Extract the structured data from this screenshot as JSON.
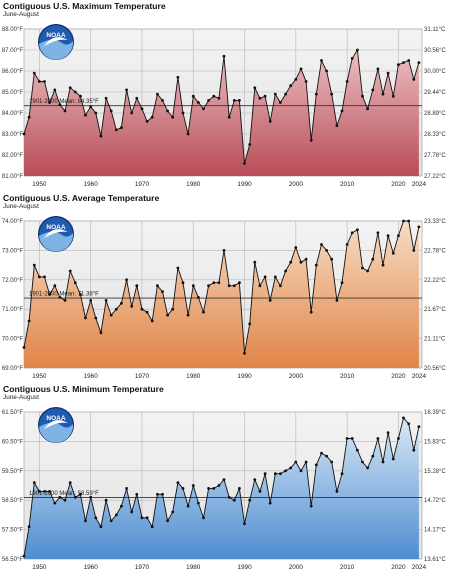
{
  "chart_data": [
    {
      "type": "line",
      "title": "Contiguous U.S. Maximum Temperature",
      "subtitle": "June-August",
      "logo": "NOAA",
      "mean_label": "1901-2000 Mean: 84.35°F",
      "mean_value": 84.35,
      "ylim": [
        81.0,
        88.0
      ],
      "yticks_left": [
        "81.00°F",
        "82.00°F",
        "83.00°F",
        "84.00°F",
        "85.00°F",
        "86.00°F",
        "87.00°F",
        "88.00°F"
      ],
      "yticks_right": [
        "27.22°C",
        "27.78°C",
        "28.33°C",
        "28.89°C",
        "29.44°C",
        "30.00°C",
        "30.56°C",
        "31.11°C"
      ],
      "xticks": [
        "1950",
        "1960",
        "1970",
        "1980",
        "1990",
        "2000",
        "2010",
        "2020",
        "2024"
      ],
      "colors": {
        "fill_top": "#ecc0c3",
        "fill_bottom": "#b84c56",
        "line": "#111111",
        "marker": "#111111",
        "mean_line": "#333333"
      },
      "series": [
        {
          "values": [
            83.0,
            83.8,
            85.9,
            85.5,
            85.5,
            84.5,
            85.1,
            84.4,
            84.1,
            85.2,
            85.0,
            84.8,
            83.9,
            84.3,
            84.0,
            82.9,
            84.7,
            84.1,
            83.2,
            83.3,
            85.1,
            84.0,
            84.7,
            84.2,
            83.6,
            83.8,
            84.9,
            84.6,
            84.1,
            83.8,
            85.7,
            84.0,
            83.0,
            84.8,
            84.5,
            84.2,
            84.6,
            84.8,
            84.7,
            86.7,
            83.8,
            84.6,
            84.6,
            81.6,
            82.5,
            85.2,
            84.7,
            84.8,
            83.6,
            84.9,
            84.5,
            84.9,
            85.3,
            85.6,
            86.1,
            85.5,
            82.7,
            84.9,
            86.5,
            86.0,
            84.9,
            83.4,
            84.1,
            85.5,
            86.6,
            87.0,
            84.8,
            84.2,
            85.1,
            86.1,
            84.9,
            85.9,
            84.8,
            86.3,
            86.4,
            86.5,
            85.6,
            86.4
          ]
        }
      ],
      "x_start": 1947
    },
    {
      "type": "line",
      "title": "Contiguous U.S. Average Temperature",
      "subtitle": "June-August",
      "logo": "NOAA",
      "mean_label": "1901-2000 Mean: 71.38°F",
      "mean_value": 71.38,
      "ylim": [
        69.0,
        74.0
      ],
      "yticks_left": [
        "69.00°F",
        "70.00°F",
        "71.00°F",
        "72.00°F",
        "73.00°F",
        "74.00°F"
      ],
      "yticks_right": [
        "20.56°C",
        "21.11°C",
        "21.67°C",
        "22.22°C",
        "22.78°C",
        "23.33°C"
      ],
      "xticks": [
        "1950",
        "1960",
        "1970",
        "1980",
        "1990",
        "2000",
        "2010",
        "2020",
        "2024"
      ],
      "colors": {
        "fill_top": "#f7dcc4",
        "fill_bottom": "#e08548",
        "line": "#111111",
        "marker": "#111111",
        "mean_line": "#333333"
      },
      "series": [
        {
          "values": [
            69.7,
            70.6,
            72.5,
            72.1,
            72.1,
            71.5,
            71.8,
            71.4,
            71.3,
            72.3,
            71.9,
            71.5,
            70.7,
            71.3,
            70.7,
            70.2,
            71.3,
            70.8,
            71.0,
            71.2,
            72.0,
            71.1,
            71.8,
            71.0,
            70.9,
            70.6,
            71.8,
            71.6,
            70.8,
            71.0,
            72.4,
            71.9,
            70.8,
            71.8,
            71.4,
            70.9,
            71.8,
            71.9,
            71.9,
            73.0,
            71.8,
            71.8,
            71.9,
            69.5,
            70.5,
            72.6,
            71.8,
            72.1,
            71.3,
            72.1,
            71.8,
            72.3,
            72.6,
            73.1,
            72.6,
            72.7,
            70.9,
            72.5,
            73.2,
            73.0,
            72.7,
            71.3,
            71.9,
            73.2,
            73.6,
            73.7,
            72.4,
            72.3,
            72.7,
            73.6,
            72.5,
            73.5,
            72.9,
            73.5,
            74.0,
            74.0,
            73.0,
            73.8
          ]
        }
      ],
      "x_start": 1947
    },
    {
      "type": "line",
      "title": "Contiguous U.S. Minimum Temperature",
      "subtitle": "June-August",
      "logo": "NOAA",
      "mean_label": "1901-2000 Mean: 58.59°F",
      "mean_value": 58.59,
      "ylim": [
        56.5,
        61.5
      ],
      "yticks_left": [
        "56.50°F",
        "57.50°F",
        "58.50°F",
        "59.50°F",
        "60.50°F",
        "61.50°F"
      ],
      "yticks_right": [
        "13.61°C",
        "14.17°C",
        "14.72°C",
        "15.28°C",
        "15.83°C",
        "16.39°C"
      ],
      "xticks": [
        "1950",
        "1960",
        "1970",
        "1980",
        "1990",
        "2000",
        "2010",
        "2020",
        "2024"
      ],
      "colors": {
        "fill_top": "#d9e8f6",
        "fill_bottom": "#4e8dd0",
        "line": "#111111",
        "marker": "#111111",
        "mean_line": "#333333"
      },
      "series": [
        {
          "values": [
            56.6,
            57.6,
            59.1,
            58.8,
            58.8,
            58.8,
            58.4,
            58.6,
            58.5,
            59.1,
            58.6,
            58.7,
            57.8,
            58.6,
            57.9,
            57.6,
            58.5,
            57.8,
            58.0,
            58.3,
            58.9,
            58.1,
            58.7,
            57.9,
            57.9,
            57.6,
            58.7,
            58.7,
            57.8,
            58.1,
            59.1,
            58.9,
            58.3,
            59.0,
            58.4,
            57.9,
            58.9,
            58.9,
            59.0,
            59.2,
            58.6,
            58.5,
            58.9,
            57.7,
            58.5,
            59.2,
            58.8,
            59.4,
            58.4,
            59.4,
            59.4,
            59.5,
            59.6,
            59.8,
            59.5,
            59.8,
            58.3,
            59.7,
            60.1,
            60.0,
            59.8,
            58.8,
            59.4,
            60.6,
            60.6,
            60.2,
            59.8,
            59.6,
            60.0,
            60.6,
            59.8,
            60.8,
            59.9,
            60.6,
            61.3,
            61.1,
            60.2,
            61.0
          ]
        }
      ],
      "x_start": 1947
    }
  ]
}
